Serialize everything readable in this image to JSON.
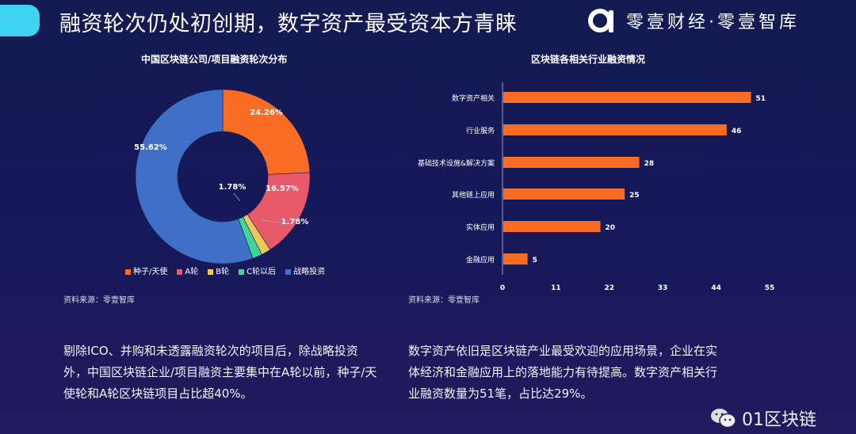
{
  "header": {
    "title": "融资轮次仍处初创期，数字资产最受资本方青睐",
    "logo_text": "零壹财经·零壹智库"
  },
  "left": {
    "source": "资料来源：零壹智库",
    "description": "剔除ICO、并购和未透露融资轮次的项目后，除战略投资外，中国区块链企业/项目融资主要集中在A轮以前，种子/天使轮和A轮区块链项目占比超40%。"
  },
  "right": {
    "source": "资料来源：零壹智库",
    "description": "数字资产依旧是区块链产业最受欢迎的应用场景，企业在实体经济和金融应用上的落地能力有待提高。数字资产相关行业融资数量为51笔，占比达29%。"
  },
  "watermark": {
    "text": "01区块链",
    "icon": "wechat-icon"
  },
  "chart_data": [
    {
      "type": "pie",
      "title": "中国区块链公司/项目融资轮次分布",
      "categories": [
        "种子/天使",
        "A轮",
        "B轮",
        "C轮以后",
        "战略投资"
      ],
      "values": [
        24.26,
        16.57,
        1.78,
        1.78,
        55.62
      ],
      "labels": [
        "24.26%",
        "16.57%",
        "1.78%",
        "1.78%",
        "55.62%"
      ],
      "colors": [
        "#fa6b24",
        "#e85a6a",
        "#e8c95a",
        "#3fd69a",
        "#3f6fc6"
      ],
      "legend": "bottom"
    },
    {
      "type": "bar",
      "orientation": "horizontal",
      "title": "区块链各相关行业融资情况",
      "categories": [
        "数字资产相关",
        "行业服务",
        "基础技术设施&解决方案",
        "其他链上应用",
        "实体应用",
        "金融应用"
      ],
      "values": [
        51,
        46,
        28,
        25,
        20,
        5
      ],
      "xticks": [
        0,
        11,
        22,
        33,
        44,
        55
      ],
      "xlim": [
        0,
        55
      ],
      "color": "#fa6b24"
    }
  ]
}
